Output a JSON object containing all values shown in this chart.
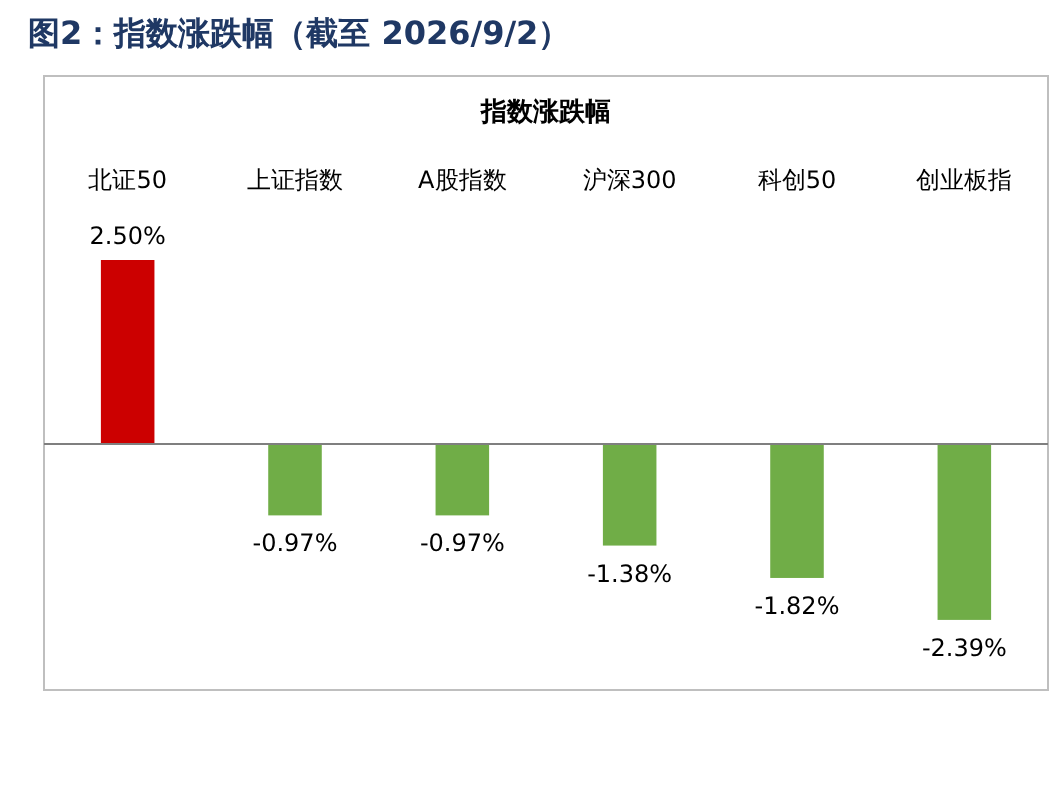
{
  "chart_data": {
    "type": "bar",
    "title": "图2：指数涨跌幅（截至 2026/9/2）",
    "subtitle": "指数涨跌幅",
    "categories": [
      "北证50",
      "上证指数",
      "A股指数",
      "沪深300",
      "科创50",
      "创业板指"
    ],
    "values": [
      2.5,
      -0.97,
      -0.97,
      -1.38,
      -1.82,
      -2.39
    ],
    "colors": [
      "#cc0000",
      "#70ad47",
      "#70ad47",
      "#70ad47",
      "#70ad47",
      "#70ad47"
    ],
    "value_labels": [
      "2.50%",
      "-0.97%",
      "-0.97%",
      "-1.38%",
      "-1.82%",
      "-2.39%"
    ]
  }
}
